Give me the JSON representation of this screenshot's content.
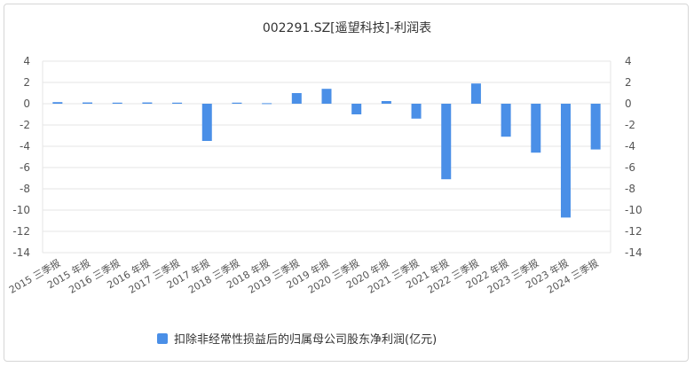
{
  "chart_data": {
    "type": "bar",
    "title": "002291.SZ[遥望科技]-利润表",
    "categories": [
      "2015 三季报",
      "2015 年报",
      "2016 三季报",
      "2016 年报",
      "2017 三季报",
      "2017 年报",
      "2018 三季报",
      "2018 年报",
      "2019 三季报",
      "2019 年报",
      "2020 三季报",
      "2020 年报",
      "2021 三季报",
      "2021 年报",
      "2022 三季报",
      "2022 年报",
      "2023 三季报",
      "2023 年报",
      "2024 三季报"
    ],
    "series": [
      {
        "name": "扣除非经常性损益后的归属母公司股东净利润(亿元)",
        "color": "#4a8fe7",
        "values": [
          0.15,
          0.12,
          0.1,
          0.12,
          0.1,
          -3.5,
          0.1,
          0.05,
          1.0,
          1.4,
          -1.0,
          0.25,
          -1.4,
          -7.1,
          1.9,
          -3.1,
          -4.6,
          -10.7,
          -4.3
        ]
      }
    ],
    "ylim": [
      -14,
      4
    ],
    "yticks": [
      4,
      2,
      0,
      -2,
      -4,
      -6,
      -8,
      -10,
      -12,
      -14
    ],
    "xlabel": "",
    "ylabel": "",
    "grid": true,
    "legend_position": "bottom"
  }
}
